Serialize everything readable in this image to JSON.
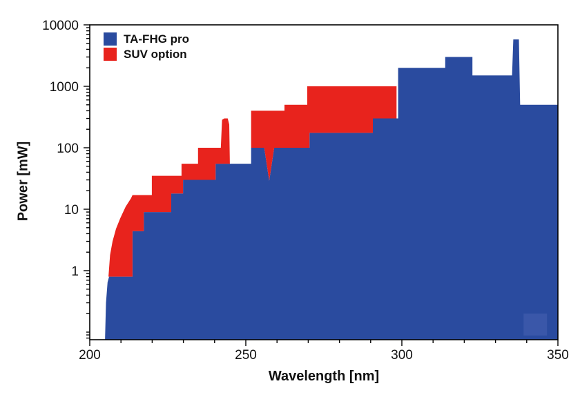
{
  "page": {
    "background": "#ffffff"
  },
  "chart_data": {
    "type": "area",
    "title": "",
    "xlabel": "Wavelength [nm]",
    "ylabel": "Power [mW]",
    "grid": "off",
    "x_axis": {
      "scale": "linear",
      "min": 200,
      "max": 350,
      "major_ticks": [
        200,
        250,
        300,
        350
      ],
      "minor_tick_step": 10
    },
    "y_axis": {
      "scale": "log",
      "min": 0.075,
      "max": 10000,
      "major_ticks": [
        1,
        10,
        100,
        1000,
        10000
      ],
      "major_tick_labels": [
        "1",
        "10",
        "100",
        "1000",
        "10000"
      ]
    },
    "legend": {
      "position": "top-left",
      "entries": [
        {
          "label": "TA-FHG pro",
          "color": "#2a4b9f"
        },
        {
          "label": "SUV option",
          "color": "#e8231d"
        }
      ]
    },
    "series": [
      {
        "name": "TA-FHG pro",
        "color": "#2a4b9f",
        "style": "filled-area",
        "top_outline_points_nm_mW": [
          [
            204.9,
            0.075
          ],
          [
            205.2,
            0.3
          ],
          [
            205.7,
            0.65
          ],
          [
            206.2,
            0.8
          ],
          [
            213.7,
            0.8
          ],
          [
            213.7,
            4.4
          ],
          [
            217.3,
            4.4
          ],
          [
            217.3,
            9
          ],
          [
            226.1,
            9
          ],
          [
            226.1,
            18
          ],
          [
            229.9,
            18
          ],
          [
            229.9,
            30
          ],
          [
            240.3,
            30
          ],
          [
            240.3,
            55
          ],
          [
            251.7,
            55
          ],
          [
            251.7,
            100
          ],
          [
            255.9,
            100
          ],
          [
            257.5,
            29
          ],
          [
            259.1,
            100
          ],
          [
            270.4,
            100
          ],
          [
            270.4,
            175
          ],
          [
            290.7,
            175
          ],
          [
            290.7,
            300
          ],
          [
            298.8,
            300
          ],
          [
            298.8,
            2000
          ],
          [
            313.9,
            2000
          ],
          [
            313.9,
            3000
          ],
          [
            322.6,
            3000
          ],
          [
            322.6,
            1500
          ],
          [
            335.3,
            1500
          ],
          [
            335.7,
            5800
          ],
          [
            337.5,
            5800
          ],
          [
            337.9,
            500
          ],
          [
            350,
            500
          ],
          [
            350,
            0.075
          ]
        ]
      },
      {
        "name": "SUV option",
        "color": "#e8231d",
        "style": "stacked-filled-area",
        "polygon_loops_nm_mW": [
          [
            [
              206.0,
              0.8
            ],
            [
              206.5,
              1.8
            ],
            [
              207.3,
              3.0
            ],
            [
              208.4,
              4.8
            ],
            [
              209.8,
              7.2
            ],
            [
              211.5,
              11
            ],
            [
              213.2,
              15
            ],
            [
              213.7,
              17
            ],
            [
              219.9,
              17
            ],
            [
              219.9,
              35
            ],
            [
              229.4,
              35
            ],
            [
              229.4,
              55
            ],
            [
              234.7,
              55
            ],
            [
              234.7,
              100
            ],
            [
              242.0,
              100
            ],
            [
              242.4,
              285
            ],
            [
              243.1,
              300
            ],
            [
              244.2,
              300
            ],
            [
              244.7,
              240
            ],
            [
              244.9,
              55
            ],
            [
              240.3,
              55
            ],
            [
              240.3,
              30
            ],
            [
              229.9,
              30
            ],
            [
              229.9,
              18
            ],
            [
              226.1,
              18
            ],
            [
              226.1,
              9
            ],
            [
              217.3,
              9
            ],
            [
              217.3,
              4.4
            ],
            [
              213.7,
              4.4
            ],
            [
              213.7,
              0.8
            ]
          ],
          [
            [
              251.7,
              100
            ],
            [
              251.7,
              400
            ],
            [
              262.4,
              400
            ],
            [
              262.4,
              500
            ],
            [
              269.7,
              500
            ],
            [
              269.7,
              1000
            ],
            [
              298.3,
              1000
            ],
            [
              298.3,
              300
            ],
            [
              290.7,
              300
            ],
            [
              290.7,
              175
            ],
            [
              270.4,
              175
            ],
            [
              270.4,
              100
            ],
            [
              259.1,
              100
            ],
            [
              257.5,
              29
            ],
            [
              255.9,
              100
            ]
          ]
        ]
      }
    ],
    "decor": {
      "watermark_square": {
        "x_nm": [
          339,
          346.5
        ],
        "power_mW": [
          0.088,
          0.2
        ],
        "color": "#3a57a9"
      }
    }
  }
}
